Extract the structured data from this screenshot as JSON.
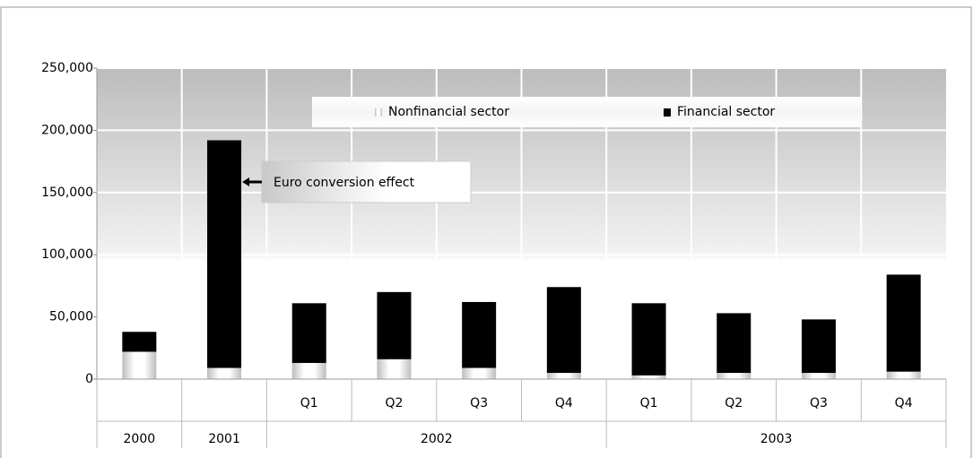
{
  "chart_data": {
    "type": "stacked_bar",
    "categories": [
      null,
      null,
      "Q1",
      "Q2",
      "Q3",
      "Q4",
      "Q1",
      "Q2",
      "Q3",
      "Q4"
    ],
    "category_groups": [
      {
        "label": "2000",
        "size": 1
      },
      {
        "label": "2001",
        "size": 1
      },
      {
        "label": "2002",
        "size": 4
      },
      {
        "label": "2003",
        "size": 4
      }
    ],
    "series": [
      {
        "name": "Nonfinancial sector",
        "color": "#d9d9d9",
        "values": [
          22000,
          9000,
          13000,
          16000,
          9000,
          5000,
          3000,
          5000,
          5000,
          6000
        ]
      },
      {
        "name": "Financial sector",
        "color": "#000000",
        "values": [
          16000,
          183000,
          48000,
          54000,
          53000,
          69000,
          58000,
          48000,
          43000,
          78000
        ]
      }
    ],
    "ylim": [
      0,
      250000
    ],
    "yticks": [
      0,
      {
        "value": 50000,
        "label": "50,000"
      },
      {
        "value": 100000,
        "label": "100,000"
      },
      {
        "value": 150000,
        "label": "150,000"
      },
      {
        "value": 200000,
        "label": "200,000"
      },
      {
        "value": 250000,
        "label": "250,000"
      }
    ],
    "grid": true,
    "legend": "top",
    "annotations": [
      {
        "text": "Euro conversion effect",
        "target": 1
      }
    ]
  }
}
